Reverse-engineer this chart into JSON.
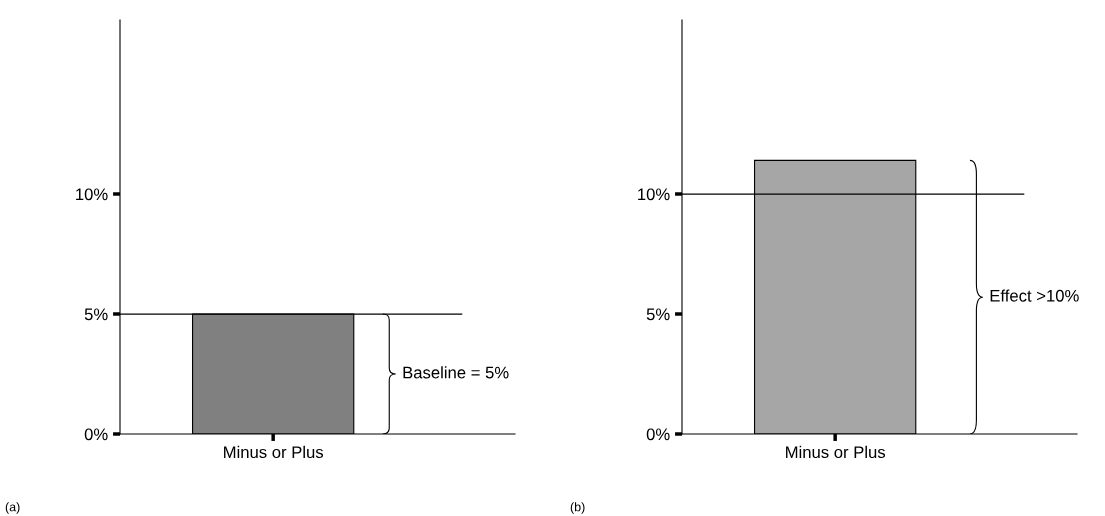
{
  "chart_data": [
    {
      "type": "bar",
      "categories": [
        "Minus or Plus"
      ],
      "values": [
        5
      ],
      "color": "#808080",
      "ylim": [
        0,
        17.25
      ],
      "yticks": [
        {
          "value": 0,
          "label": "0%"
        },
        {
          "value": 5,
          "label": "5%"
        },
        {
          "value": 10,
          "label": "10%"
        }
      ],
      "ref_lines": [
        {
          "axis": "y",
          "value": 5,
          "color": "#000000"
        }
      ],
      "annotations": [
        "Baseline = 5%",
        "(a)"
      ],
      "grid": false,
      "legend": false
    },
    {
      "type": "bar",
      "categories": [
        "Minus or Plus"
      ],
      "values": [
        11.4
      ],
      "color": "#a6a6a6",
      "ylim": [
        0,
        17.25
      ],
      "yticks": [
        {
          "value": 0,
          "label": "0%"
        },
        {
          "value": 5,
          "label": "5%"
        },
        {
          "value": 10,
          "label": "10%"
        }
      ],
      "ref_lines": [
        {
          "axis": "y",
          "value": 10,
          "color": "#000000"
        }
      ],
      "annotations": [
        "Effect >10%",
        "(b)"
      ],
      "grid": false,
      "legend": false
    }
  ]
}
